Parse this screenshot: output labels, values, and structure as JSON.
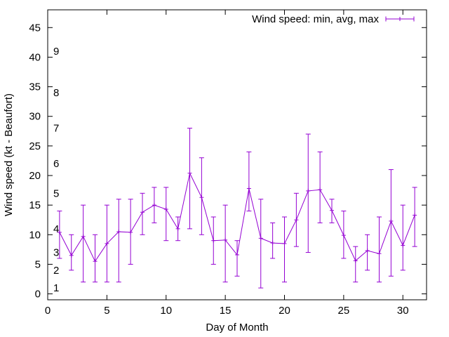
{
  "chart_data": {
    "type": "line",
    "title": "",
    "xlabel": "Day of Month",
    "ylabel": "Wind speed (kt - Beaufort)",
    "xlim": [
      0,
      32
    ],
    "ylim": [
      -1,
      48
    ],
    "xticks": [
      0,
      5,
      10,
      15,
      20,
      25,
      30
    ],
    "yticks": [
      0,
      5,
      10,
      15,
      20,
      25,
      30,
      35,
      40,
      45
    ],
    "grid": false,
    "legend_position": "top-right",
    "color": "#9400d3",
    "beaufort_labels": [
      {
        "label": "1",
        "y": 1
      },
      {
        "label": "2",
        "y": 4
      },
      {
        "label": "3",
        "y": 7
      },
      {
        "label": "4",
        "y": 11
      },
      {
        "label": "5",
        "y": 17
      },
      {
        "label": "6",
        "y": 22
      },
      {
        "label": "7",
        "y": 28
      },
      {
        "label": "8",
        "y": 34
      },
      {
        "label": "9",
        "y": 41
      }
    ],
    "series": [
      {
        "name": "Wind speed: min, avg, max",
        "x": [
          1,
          2,
          3,
          4,
          5,
          6,
          7,
          8,
          9,
          10,
          11,
          12,
          13,
          14,
          15,
          16,
          17,
          18,
          19,
          20,
          21,
          22,
          23,
          24,
          25,
          26,
          27,
          28,
          29,
          30,
          31
        ],
        "avg": [
          10.4,
          6.5,
          9.7,
          5.5,
          8.5,
          10.5,
          10.4,
          13.8,
          15.0,
          14.3,
          11.0,
          20.4,
          16.3,
          9.0,
          9.1,
          6.6,
          17.8,
          9.4,
          8.6,
          8.5,
          12.5,
          17.4,
          17.6,
          14.1,
          9.9,
          5.6,
          7.3,
          6.8,
          12.3,
          8.2,
          13.3
        ],
        "min": [
          6,
          4,
          2,
          2,
          2,
          2,
          5,
          10,
          12,
          9,
          9,
          11,
          10,
          5,
          2,
          3,
          14,
          1,
          6,
          2,
          8,
          7,
          12,
          12,
          6,
          2,
          4,
          2,
          3,
          4,
          8
        ],
        "max": [
          14,
          10,
          15,
          10,
          15,
          16,
          16,
          17,
          18,
          18,
          13,
          28,
          23,
          13,
          15,
          9,
          24,
          16,
          12,
          13,
          17,
          27,
          24,
          16,
          14,
          8,
          10,
          13,
          21,
          15,
          18
        ]
      }
    ]
  }
}
